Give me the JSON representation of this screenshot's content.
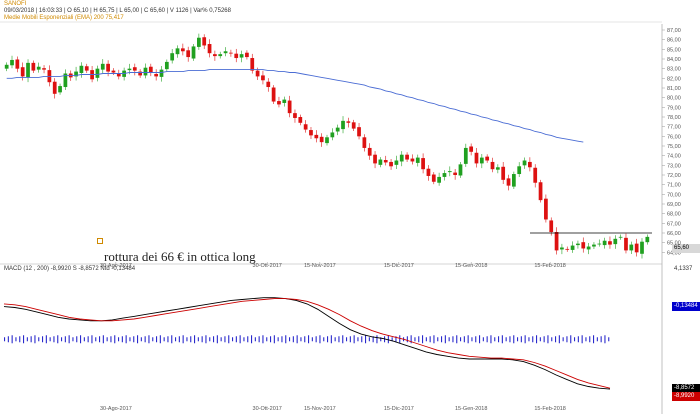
{
  "header": {
    "instrument": "SANOFI",
    "quote_line": "09/03/2018 | 16:03:33 | O 65,10 | H 65,75 | L 65,00 | C 65,60 | V 1126 | Var% 0,75268",
    "ema_legend": "Medie Mobili Esponenziali (EMA)    200    75,417"
  },
  "annotation": "rottura dei 66 € in ottica long",
  "macd": {
    "legend": "MACD   (12 , 200)   -8,9920   S   -8,8572   Ntd   -0,13484"
  },
  "tags": {
    "price": "65,60",
    "macd_hist": "-0,13484",
    "macd_signal": "-8,8572",
    "macd_line": "-8,9920",
    "macd_top": "4,1337"
  },
  "colors": {
    "up": "#20a020",
    "down": "#dd1111",
    "ema": "#4a6cd4",
    "macd_line": "#000000",
    "macd_signal": "#cc0000",
    "hist": "#2a2acc"
  },
  "chart_data": [
    {
      "type": "line",
      "name": "price",
      "y_ticks": [
        64,
        65,
        66,
        67,
        68,
        69,
        70,
        71,
        72,
        73,
        74,
        75,
        76,
        77,
        78,
        79,
        80,
        81,
        82,
        83,
        84,
        85,
        86,
        87
      ],
      "ylim": [
        63,
        87
      ],
      "x_labels": [
        "30-Ago-2017",
        "30-Ott-2017",
        "15-Nov-2017",
        "15-Dic-2017",
        "15-Gen-2018",
        "15-Feb-2018"
      ],
      "x_label_pos": [
        0.17,
        0.4,
        0.48,
        0.6,
        0.71,
        0.83
      ],
      "close": [
        83.4,
        83.9,
        83.0,
        82.2,
        83.6,
        82.8,
        83.2,
        82.9,
        81.6,
        80.4,
        81.2,
        82.5,
        82.1,
        82.7,
        83.3,
        82.8,
        81.9,
        83.0,
        83.5,
        82.7,
        82.6,
        82.2,
        82.8,
        83.0,
        82.8,
        82.3,
        83.1,
        82.6,
        82.2,
        82.9,
        83.7,
        84.6,
        85.1,
        84.8,
        84.2,
        85.3,
        86.2,
        85.4,
        84.6,
        84.3,
        84.5,
        84.8,
        84.6,
        84.1,
        84.5,
        84.2,
        82.8,
        82.2,
        81.8,
        81.1,
        79.6,
        79.3,
        79.8,
        78.4,
        77.9,
        77.4,
        76.7,
        76.1,
        75.8,
        75.4,
        75.9,
        76.4,
        76.9,
        77.6,
        77.4,
        76.8,
        76.0,
        74.8,
        74.0,
        73.2,
        73.6,
        73.3,
        72.9,
        73.5,
        74.1,
        73.6,
        73.4,
        73.8,
        72.6,
        71.9,
        71.3,
        71.8,
        72.2,
        72.4,
        72.0,
        73.1,
        74.8,
        74.4,
        73.2,
        73.8,
        73.5,
        72.6,
        72.8,
        71.5,
        70.9,
        72.1,
        72.9,
        73.5,
        72.8,
        71.2,
        69.4,
        67.4,
        66.1,
        64.2,
        64.5,
        64.3,
        64.7,
        64.9,
        64.4,
        64.6,
        64.8,
        64.9,
        65.2,
        64.8,
        65.4,
        65.6,
        64.2,
        64.8,
        64.0,
        65.1,
        65.6
      ],
      "ema": [
        82.0,
        82.0,
        82.1,
        82.1,
        82.1,
        82.1,
        82.1,
        82.2,
        82.2,
        82.2,
        82.2,
        82.3,
        82.3,
        82.3,
        82.4,
        82.4,
        82.4,
        82.4,
        82.5,
        82.5,
        82.5,
        82.5,
        82.5,
        82.6,
        82.6,
        82.6,
        82.6,
        82.6,
        82.6,
        82.6,
        82.7,
        82.7,
        82.7,
        82.7,
        82.8,
        82.8,
        82.8,
        82.8,
        82.9,
        82.9,
        82.9,
        82.9,
        82.9,
        82.9,
        82.9,
        82.9,
        82.9,
        82.9,
        82.9,
        82.8,
        82.8,
        82.7,
        82.7,
        82.6,
        82.6,
        82.5,
        82.4,
        82.3,
        82.2,
        82.1,
        82.0,
        81.9,
        81.8,
        81.7,
        81.6,
        81.5,
        81.4,
        81.3,
        81.1,
        81.0,
        80.9,
        80.7,
        80.6,
        80.4,
        80.3,
        80.1,
        80.0,
        79.8,
        79.7,
        79.5,
        79.4,
        79.2,
        79.1,
        78.9,
        78.8,
        78.6,
        78.5,
        78.3,
        78.2,
        78.0,
        77.9,
        77.7,
        77.6,
        77.4,
        77.3,
        77.1,
        77.0,
        76.8,
        76.7,
        76.5,
        76.4,
        76.2,
        76.1,
        75.9,
        75.8,
        75.7,
        75.6,
        75.5,
        75.4
      ]
    },
    {
      "type": "line",
      "name": "MACD",
      "ylim": [
        -10,
        4.2
      ],
      "macd": [
        0.3,
        0.2,
        0.0,
        -0.3,
        -0.6,
        -0.9,
        -1.1,
        -1.2,
        -1.3,
        -1.3,
        -1.2,
        -1.0,
        -0.8,
        -0.6,
        -0.4,
        -0.2,
        0.0,
        0.2,
        0.4,
        0.6,
        0.8,
        1.0,
        1.1,
        1.2,
        1.3,
        1.3,
        1.2,
        1.0,
        0.6,
        0.0,
        -0.8,
        -1.6,
        -2.3,
        -2.8,
        -3.1,
        -3.3,
        -3.6,
        -4.0,
        -4.4,
        -4.8,
        -5.1,
        -5.3,
        -5.5,
        -5.6,
        -5.6,
        -5.6,
        -5.6,
        -5.7,
        -5.9,
        -6.3,
        -6.8,
        -7.4,
        -7.9,
        -8.4,
        -8.7,
        -8.9,
        -9.0
      ],
      "signal": [
        0.6,
        0.5,
        0.3,
        0.0,
        -0.3,
        -0.6,
        -0.9,
        -1.1,
        -1.2,
        -1.3,
        -1.3,
        -1.2,
        -1.1,
        -0.9,
        -0.7,
        -0.5,
        -0.3,
        -0.1,
        0.1,
        0.3,
        0.5,
        0.7,
        0.9,
        1.0,
        1.1,
        1.2,
        1.2,
        1.1,
        0.9,
        0.5,
        0.0,
        -0.6,
        -1.3,
        -1.9,
        -2.4,
        -2.8,
        -3.1,
        -3.4,
        -3.8,
        -4.2,
        -4.6,
        -4.9,
        -5.1,
        -5.3,
        -5.4,
        -5.5,
        -5.5,
        -5.6,
        -5.7,
        -6.0,
        -6.4,
        -6.9,
        -7.4,
        -7.9,
        -8.3,
        -8.6,
        -8.9
      ]
    }
  ]
}
